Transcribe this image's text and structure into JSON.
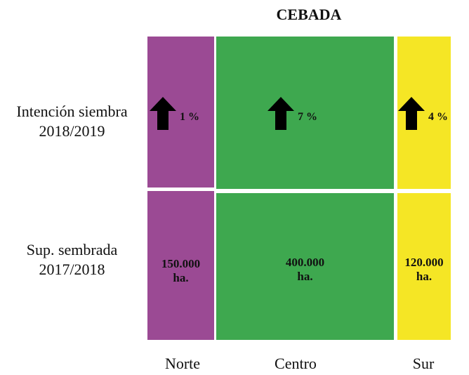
{
  "chart_data": {
    "type": "table",
    "title": "CEBADA",
    "rows": [
      {
        "line1": "Intención siembra",
        "line2": "2018/2019"
      },
      {
        "line1": "Sup. sembrada",
        "line2": "2017/2018"
      }
    ],
    "regions": [
      {
        "name": "Norte",
        "color": "#9b4a94",
        "change": "1 %",
        "trend": "up",
        "area_value": "150.000",
        "area_unit": "ha."
      },
      {
        "name": "Centro",
        "color": "#3ea84f",
        "change": "7 %",
        "trend": "up",
        "area_value": "400.000",
        "area_unit": "ha."
      },
      {
        "name": "Sur",
        "color": "#f5e625",
        "change": "4 %",
        "trend": "up",
        "area_value": "120.000",
        "area_unit": "ha."
      }
    ]
  }
}
